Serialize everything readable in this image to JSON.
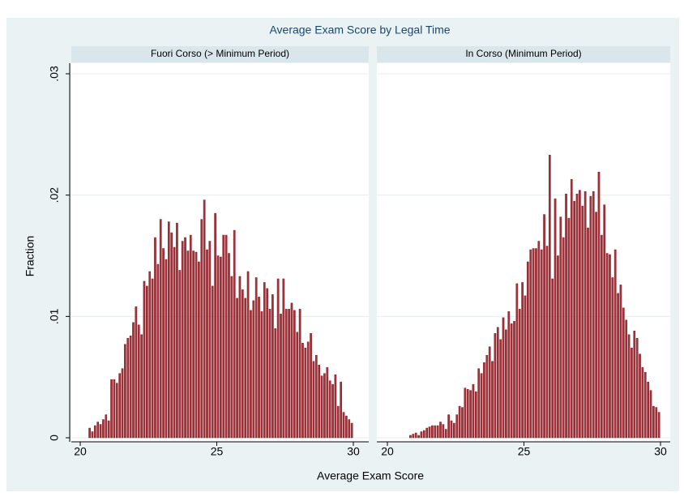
{
  "chart_data": {
    "type": "histogram",
    "title": "Average Exam Score by Legal Time",
    "x_label": "Average Exam Score",
    "y_label": "Fraction",
    "bins": [
      20.0,
      20.1,
      20.2,
      20.3,
      20.4,
      20.5,
      20.6,
      20.7,
      20.8,
      20.9,
      21.0,
      21.1,
      21.2,
      21.3,
      21.4,
      21.5,
      21.6,
      21.7,
      21.8,
      21.9,
      22.0,
      22.1,
      22.2,
      22.3,
      22.4,
      22.5,
      22.6,
      22.7,
      22.8,
      22.9,
      23.0,
      23.1,
      23.2,
      23.3,
      23.4,
      23.5,
      23.6,
      23.7,
      23.8,
      23.9,
      24.0,
      24.1,
      24.2,
      24.3,
      24.4,
      24.5,
      24.6,
      24.7,
      24.8,
      24.9,
      25.0,
      25.1,
      25.2,
      25.3,
      25.4,
      25.5,
      25.6,
      25.7,
      25.8,
      25.9,
      26.0,
      26.1,
      26.2,
      26.3,
      26.4,
      26.5,
      26.6,
      26.7,
      26.8,
      26.9,
      27.0,
      27.1,
      27.2,
      27.3,
      27.4,
      27.5,
      27.6,
      27.7,
      27.8,
      27.9,
      28.0,
      28.1,
      28.2,
      28.3,
      28.4,
      28.5,
      28.6,
      28.7,
      28.8,
      28.9,
      29.0,
      29.1,
      29.2,
      29.3,
      29.4,
      29.5,
      29.6,
      29.7,
      29.8,
      29.9,
      30.0
    ],
    "xlim": [
      20,
      30
    ],
    "xticks": [
      20,
      25,
      30
    ],
    "ylim": [
      0,
      0.03
    ],
    "yticks": [
      0,
      {
        "value": 0.01,
        "label": ".01"
      },
      {
        "value": 0.02,
        "label": ".02"
      },
      {
        "value": 0.03,
        "label": ".03"
      }
    ],
    "grid": true,
    "color": "#a8323a",
    "panels": [
      {
        "name": "Fuori Corso (> Minimum Period)",
        "values": [
          0,
          0,
          0,
          0.0008,
          0.0005,
          0.001,
          0.0013,
          0.0011,
          0.0015,
          0.0019,
          0.0014,
          0.0048,
          0.0048,
          0.0045,
          0.0053,
          0.0057,
          0.0077,
          0.0082,
          0.0084,
          0.0095,
          0.0108,
          0.0093,
          0.0085,
          0.0129,
          0.0125,
          0.0137,
          0.0131,
          0.0165,
          0.0143,
          0.018,
          0.0156,
          0.0147,
          0.0178,
          0.0169,
          0.0157,
          0.0177,
          0.0138,
          0.0162,
          0.0165,
          0.0154,
          0.0167,
          0.0154,
          0.0153,
          0.0145,
          0.018,
          0.0196,
          0.0155,
          0.0162,
          0.0125,
          0.0185,
          0.015,
          0.0149,
          0.0167,
          0.0167,
          0.0152,
          0.0133,
          0.0171,
          0.0115,
          0.0133,
          0.0122,
          0.0115,
          0.0137,
          0.0105,
          0.0113,
          0.0132,
          0.0116,
          0.0104,
          0.0128,
          0.0123,
          0.0106,
          0.0118,
          0.009,
          0.0131,
          0.0102,
          0.0131,
          0.0106,
          0.0106,
          0.0111,
          0.0105,
          0.0087,
          0.0106,
          0.0078,
          0.0074,
          0.0079,
          0.0086,
          0.0063,
          0.0068,
          0.006,
          0.0051,
          0.0053,
          0.0058,
          0.0047,
          0.0044,
          0.0052,
          0.0026,
          0.0046,
          0.0021,
          0.0018,
          0.0015,
          0.0012
        ]
      },
      {
        "name": "In Corso (Minimum Period)",
        "values": [
          0,
          0,
          0,
          0,
          0,
          0,
          0,
          0,
          0.0002,
          0.0003,
          0.0004,
          0.0002,
          0.0005,
          0.0006,
          0.0008,
          0.0009,
          0.001,
          0.001,
          0.001,
          0.0013,
          0.0011,
          0.0007,
          0.0019,
          0.0014,
          0.0012,
          0.0019,
          0.0026,
          0.0025,
          0.0041,
          0.004,
          0.0039,
          0.0044,
          0.0038,
          0.0057,
          0.0053,
          0.0062,
          0.0068,
          0.0075,
          0.0063,
          0.0086,
          0.0091,
          0.0081,
          0.0099,
          0.0089,
          0.0104,
          0.0094,
          0.0096,
          0.0127,
          0.0106,
          0.0128,
          0.0117,
          0.0145,
          0.0155,
          0.0156,
          0.0156,
          0.0162,
          0.0155,
          0.0184,
          0.0158,
          0.0233,
          0.0131,
          0.0197,
          0.015,
          0.0182,
          0.0165,
          0.0201,
          0.0181,
          0.0213,
          0.0195,
          0.0201,
          0.0204,
          0.0191,
          0.0203,
          0.0173,
          0.0199,
          0.0203,
          0.0186,
          0.0219,
          0.0167,
          0.0192,
          0.0152,
          0.0151,
          0.0132,
          0.0155,
          0.0119,
          0.0126,
          0.0107,
          0.0097,
          0.0085,
          0.0074,
          0.0088,
          0.0082,
          0.0069,
          0.0058,
          0.0054,
          0.0046,
          0.0039,
          0.0026,
          0.0025,
          0.0021
        ]
      }
    ]
  }
}
